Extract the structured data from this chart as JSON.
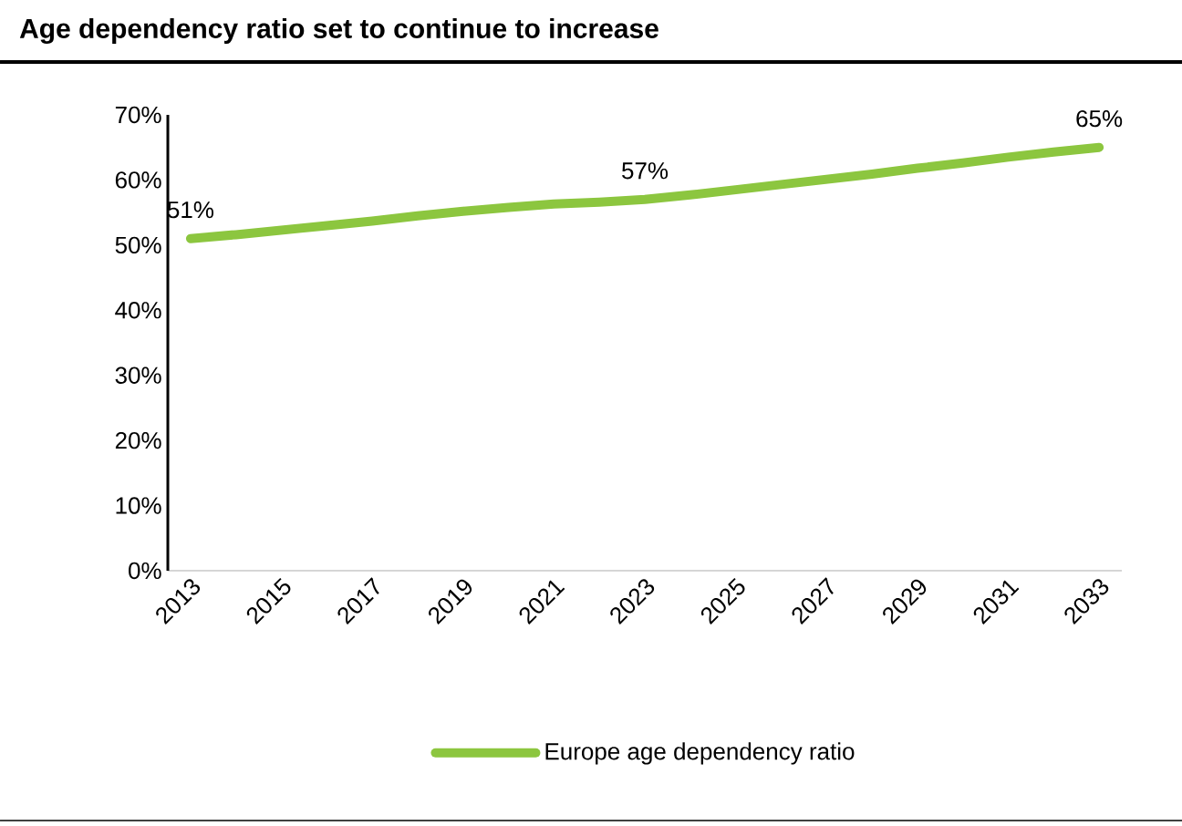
{
  "chart_data": {
    "type": "line",
    "title": "Age dependency ratio set to continue to increase",
    "x": [
      2013,
      2014,
      2015,
      2016,
      2017,
      2018,
      2019,
      2020,
      2021,
      2022,
      2023,
      2024,
      2025,
      2026,
      2027,
      2028,
      2029,
      2030,
      2031,
      2032,
      2033
    ],
    "series": [
      {
        "name": "Europe age dependency ratio",
        "color": "#8cc63f",
        "values": [
          51,
          51.6,
          52.3,
          53,
          53.7,
          54.5,
          55.2,
          55.8,
          56.3,
          56.6,
          57,
          57.7,
          58.5,
          59.3,
          60.1,
          60.9,
          61.8,
          62.6,
          63.5,
          64.3,
          65
        ],
        "value_labels": [
          "51%",
          null,
          null,
          null,
          null,
          null,
          null,
          null,
          null,
          null,
          "57%",
          null,
          null,
          null,
          null,
          null,
          null,
          null,
          null,
          null,
          "65%"
        ]
      }
    ],
    "xlim": [
      2012.5,
      2033.5
    ],
    "xticks": [
      2013,
      2015,
      2017,
      2019,
      2021,
      2023,
      2025,
      2027,
      2029,
      2031,
      2033
    ],
    "ylim": [
      0,
      70
    ],
    "yticks": [
      {
        "value": 0,
        "label": "0%"
      },
      {
        "value": 10,
        "label": "10%"
      },
      {
        "value": 20,
        "label": "20%"
      },
      {
        "value": 30,
        "label": "30%"
      },
      {
        "value": 40,
        "label": "40%"
      },
      {
        "value": 50,
        "label": "50%"
      },
      {
        "value": 60,
        "label": "60%"
      },
      {
        "value": 70,
        "label": "70%"
      }
    ],
    "legend": "bottom",
    "marker": "none",
    "line_style": "solid",
    "grid": false
  }
}
